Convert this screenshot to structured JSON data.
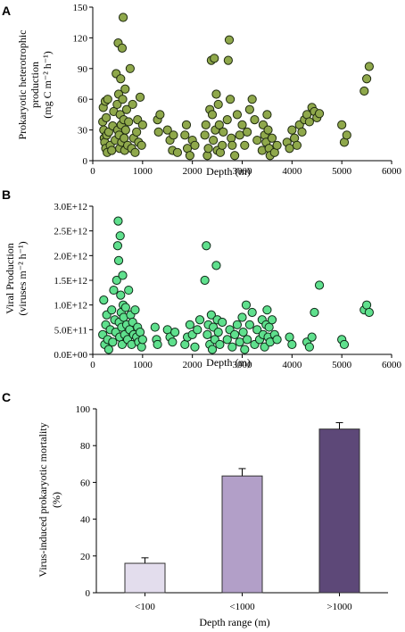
{
  "panels": {
    "A": {
      "letter": "A",
      "chart_data": {
        "type": "scatter",
        "xlabel": "Depth (m)",
        "ylabel_line1": "Prokaryotic heterotrophic",
        "ylabel_line2": "production",
        "ylabel_line3": "(mg C m⁻² h⁻¹)",
        "xlim": [
          0,
          6000
        ],
        "ylim": [
          0,
          150
        ],
        "xticks": [
          "0",
          "1000",
          "2000",
          "3000",
          "4000",
          "5000",
          "6000"
        ],
        "yticks": [
          "0",
          "30",
          "60",
          "90",
          "120",
          "150"
        ],
        "marker_fill": "#8fa84b",
        "marker_stroke": "#1f2a10",
        "points": [
          [
            200,
            38
          ],
          [
            210,
            52
          ],
          [
            220,
            30
          ],
          [
            230,
            22
          ],
          [
            240,
            18
          ],
          [
            250,
            58
          ],
          [
            260,
            12
          ],
          [
            270,
            42
          ],
          [
            280,
            25
          ],
          [
            290,
            8
          ],
          [
            300,
            60
          ],
          [
            320,
            28
          ],
          [
            350,
            15
          ],
          [
            380,
            10
          ],
          [
            400,
            34
          ],
          [
            420,
            48
          ],
          [
            450,
            20
          ],
          [
            470,
            85
          ],
          [
            490,
            55
          ],
          [
            500,
            30
          ],
          [
            510,
            115
          ],
          [
            520,
            65
          ],
          [
            530,
            25
          ],
          [
            540,
            12
          ],
          [
            550,
            45
          ],
          [
            560,
            80
          ],
          [
            570,
            35
          ],
          [
            580,
            18
          ],
          [
            590,
            110
          ],
          [
            600,
            60
          ],
          [
            610,
            140
          ],
          [
            620,
            40
          ],
          [
            630,
            22
          ],
          [
            640,
            10
          ],
          [
            650,
            70
          ],
          [
            660,
            30
          ],
          [
            680,
            50
          ],
          [
            700,
            15
          ],
          [
            720,
            38
          ],
          [
            750,
            90
          ],
          [
            780,
            12
          ],
          [
            800,
            55
          ],
          [
            820,
            22
          ],
          [
            850,
            8
          ],
          [
            880,
            28
          ],
          [
            900,
            40
          ],
          [
            920,
            18
          ],
          [
            950,
            62
          ],
          [
            980,
            15
          ],
          [
            1000,
            35
          ],
          [
            1300,
            40
          ],
          [
            1320,
            28
          ],
          [
            1350,
            45
          ],
          [
            1500,
            30
          ],
          [
            1550,
            20
          ],
          [
            1600,
            10
          ],
          [
            1620,
            25
          ],
          [
            1700,
            8
          ],
          [
            1850,
            25
          ],
          [
            1880,
            35
          ],
          [
            1900,
            12
          ],
          [
            1950,
            5
          ],
          [
            2000,
            20
          ],
          [
            2050,
            15
          ],
          [
            2250,
            25
          ],
          [
            2270,
            35
          ],
          [
            2300,
            5
          ],
          [
            2320,
            12
          ],
          [
            2350,
            50
          ],
          [
            2380,
            98
          ],
          [
            2400,
            45
          ],
          [
            2420,
            20
          ],
          [
            2440,
            100
          ],
          [
            2460,
            30
          ],
          [
            2480,
            65
          ],
          [
            2500,
            10
          ],
          [
            2520,
            55
          ],
          [
            2540,
            35
          ],
          [
            2560,
            8
          ],
          [
            2600,
            15
          ],
          [
            2620,
            28
          ],
          [
            2700,
            40
          ],
          [
            2720,
            98
          ],
          [
            2740,
            118
          ],
          [
            2760,
            60
          ],
          [
            2780,
            22
          ],
          [
            2800,
            15
          ],
          [
            2850,
            5
          ],
          [
            2900,
            45
          ],
          [
            2950,
            25
          ],
          [
            3000,
            35
          ],
          [
            3050,
            15
          ],
          [
            3100,
            28
          ],
          [
            3150,
            50
          ],
          [
            3200,
            60
          ],
          [
            3250,
            40
          ],
          [
            3300,
            20
          ],
          [
            3400,
            10
          ],
          [
            3420,
            35
          ],
          [
            3450,
            25
          ],
          [
            3480,
            18
          ],
          [
            3500,
            45
          ],
          [
            3520,
            30
          ],
          [
            3540,
            12
          ],
          [
            3560,
            5
          ],
          [
            3600,
            22
          ],
          [
            3650,
            8
          ],
          [
            3700,
            15
          ],
          [
            3900,
            18
          ],
          [
            3950,
            12
          ],
          [
            4000,
            30
          ],
          [
            4050,
            22
          ],
          [
            4100,
            15
          ],
          [
            4150,
            35
          ],
          [
            4200,
            28
          ],
          [
            4250,
            40
          ],
          [
            4300,
            45
          ],
          [
            4350,
            38
          ],
          [
            4400,
            52
          ],
          [
            4450,
            48
          ],
          [
            4500,
            42
          ],
          [
            4550,
            46
          ],
          [
            5000,
            35
          ],
          [
            5050,
            18
          ],
          [
            5100,
            25
          ],
          [
            5450,
            68
          ],
          [
            5500,
            80
          ],
          [
            5550,
            92
          ]
        ]
      }
    },
    "B": {
      "letter": "B",
      "chart_data": {
        "type": "scatter",
        "xlabel": "Depth (m)",
        "ylabel_line1": "Viral Production",
        "ylabel_line2": "(viruses m⁻² h⁻¹)",
        "xlim": [
          0,
          6000
        ],
        "ylim": [
          0,
          3000000000000.0
        ],
        "xticks": [
          "0",
          "1000",
          "2000",
          "3000",
          "4000",
          "5000",
          "6000"
        ],
        "yticks": [
          "0.0E+00",
          "5.0E+11",
          "1.0E+12",
          "1.5E+12",
          "2.0E+12",
          "2.5E+12",
          "3.0E+12"
        ],
        "marker_fill": "#5fe08d",
        "marker_stroke": "#0e2a18",
        "points": [
          [
            200,
            400000000000.0
          ],
          [
            220,
            1100000000000.0
          ],
          [
            240,
            200000000000.0
          ],
          [
            260,
            600000000000.0
          ],
          [
            280,
            800000000000.0
          ],
          [
            300,
            300000000000.0
          ],
          [
            320,
            100000000000.0
          ],
          [
            350,
            500000000000.0
          ],
          [
            380,
            900000000000.0
          ],
          [
            400,
            250000000000.0
          ],
          [
            420,
            1300000000000.0
          ],
          [
            440,
            700000000000.0
          ],
          [
            460,
            450000000000.0
          ],
          [
            480,
            1500000000000.0
          ],
          [
            500,
            2200000000000.0
          ],
          [
            510,
            2700000000000.0
          ],
          [
            520,
            1900000000000.0
          ],
          [
            530,
            650000000000.0
          ],
          [
            540,
            350000000000.0
          ],
          [
            550,
            2400000000000.0
          ],
          [
            560,
            1200000000000.0
          ],
          [
            570,
            850000000000.0
          ],
          [
            580,
            550000000000.0
          ],
          [
            590,
            200000000000.0
          ],
          [
            600,
            1600000000000.0
          ],
          [
            610,
            1000000000000.0
          ],
          [
            620,
            750000000000.0
          ],
          [
            640,
            400000000000.0
          ],
          [
            660,
            950000000000.0
          ],
          [
            680,
            600000000000.0
          ],
          [
            700,
            300000000000.0
          ],
          [
            720,
            1300000000000.0
          ],
          [
            740,
            500000000000.0
          ],
          [
            760,
            800000000000.0
          ],
          [
            780,
            200000000000.0
          ],
          [
            800,
            650000000000.0
          ],
          [
            820,
            400000000000.0
          ],
          [
            850,
            900000000000.0
          ],
          [
            880,
            350000000000.0
          ],
          [
            900,
            550000000000.0
          ],
          [
            920,
            250000000000.0
          ],
          [
            950,
            450000000000.0
          ],
          [
            980,
            150000000000.0
          ],
          [
            1000,
            300000000000.0
          ],
          [
            1250,
            550000000000.0
          ],
          [
            1280,
            300000000000.0
          ],
          [
            1300,
            200000000000.0
          ],
          [
            1500,
            500000000000.0
          ],
          [
            1550,
            350000000000.0
          ],
          [
            1600,
            250000000000.0
          ],
          [
            1650,
            450000000000.0
          ],
          [
            1850,
            200000000000.0
          ],
          [
            1900,
            350000000000.0
          ],
          [
            1950,
            600000000000.0
          ],
          [
            2000,
            400000000000.0
          ],
          [
            2050,
            150000000000.0
          ],
          [
            2100,
            500000000000.0
          ],
          [
            2150,
            700000000000.0
          ],
          [
            2250,
            1500000000000.0
          ],
          [
            2280,
            2200000000000.0
          ],
          [
            2300,
            400000000000.0
          ],
          [
            2320,
            600000000000.0
          ],
          [
            2350,
            200000000000.0
          ],
          [
            2380,
            800000000000.0
          ],
          [
            2400,
            100000000000.0
          ],
          [
            2420,
            550000000000.0
          ],
          [
            2450,
            300000000000.0
          ],
          [
            2480,
            1800000000000.0
          ],
          [
            2500,
            700000000000.0
          ],
          [
            2520,
            450000000000.0
          ],
          [
            2550,
            200000000000.0
          ],
          [
            2600,
            650000000000.0
          ],
          [
            2700,
            300000000000.0
          ],
          [
            2750,
            500000000000.0
          ],
          [
            2800,
            150000000000.0
          ],
          [
            2850,
            400000000000.0
          ],
          [
            2900,
            600000000000.0
          ],
          [
            2950,
            250000000000.0
          ],
          [
            3000,
            750000000000.0
          ],
          [
            3020,
            450000000000.0
          ],
          [
            3050,
            100000000000.0
          ],
          [
            3080,
            1000000000000.0
          ],
          [
            3100,
            300000000000.0
          ],
          [
            3150,
            600000000000.0
          ],
          [
            3200,
            850000000000.0
          ],
          [
            3250,
            200000000000.0
          ],
          [
            3300,
            500000000000.0
          ],
          [
            3350,
            300000000000.0
          ],
          [
            3400,
            700000000000.0
          ],
          [
            3420,
            400000000000.0
          ],
          [
            3450,
            150000000000.0
          ],
          [
            3480,
            600000000000.0
          ],
          [
            3500,
            900000000000.0
          ],
          [
            3520,
            350000000000.0
          ],
          [
            3540,
            550000000000.0
          ],
          [
            3560,
            250000000000.0
          ],
          [
            3600,
            700000000000.0
          ],
          [
            3650,
            400000000000.0
          ],
          [
            3700,
            300000000000.0
          ],
          [
            3950,
            350000000000.0
          ],
          [
            4000,
            200000000000.0
          ],
          [
            4300,
            250000000000.0
          ],
          [
            4350,
            150000000000.0
          ],
          [
            4400,
            350000000000.0
          ],
          [
            4450,
            850000000000.0
          ],
          [
            4550,
            1400000000000.0
          ],
          [
            5000,
            300000000000.0
          ],
          [
            5050,
            200000000000.0
          ],
          [
            5450,
            900000000000.0
          ],
          [
            5500,
            1000000000000.0
          ],
          [
            5550,
            850000000000.0
          ]
        ]
      }
    },
    "C": {
      "letter": "C",
      "chart_data": {
        "type": "bar",
        "xlabel": "Depth range (m)",
        "ylabel_line1": "Virus-induced prokaryotic mortality",
        "ylabel_line2": "(%)",
        "ylim": [
          0,
          100
        ],
        "yticks": [
          "0",
          "20",
          "40",
          "60",
          "80",
          "100"
        ],
        "categories": [
          "<100",
          "<1000",
          ">1000"
        ],
        "values": [
          16,
          63.5,
          89
        ],
        "errors": [
          3,
          4,
          3.5
        ],
        "colors": [
          "#e3dded",
          "#b29fc8",
          "#5d4878"
        ],
        "edge_color": "#333333"
      }
    }
  }
}
